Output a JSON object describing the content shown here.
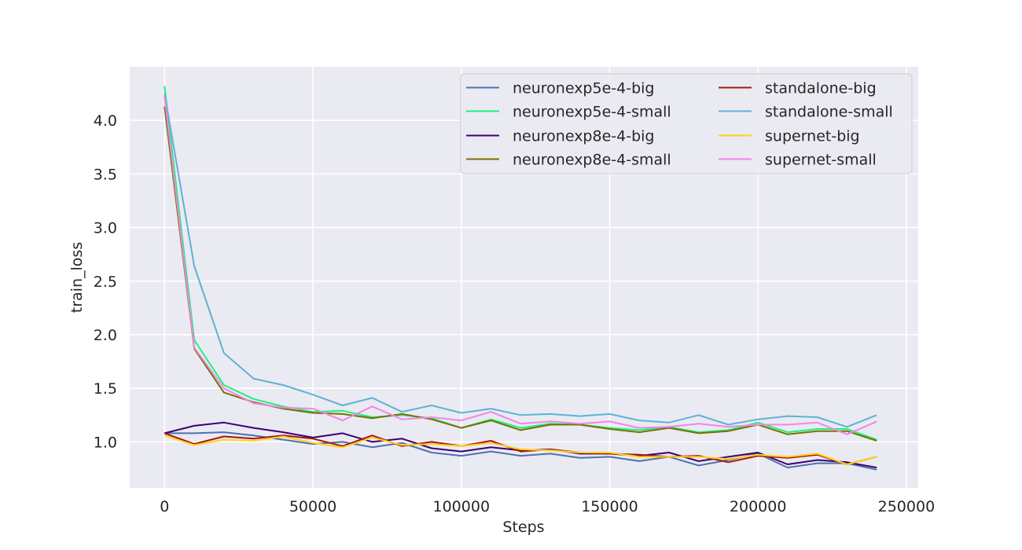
{
  "chart_data": {
    "type": "line",
    "title": "",
    "xlabel": "Steps",
    "ylabel": "train_loss",
    "xlim": [
      -11750,
      254000
    ],
    "ylim": [
      0.57,
      4.5
    ],
    "xticks": [
      0,
      50000,
      100000,
      150000,
      200000,
      250000
    ],
    "xtick_labels": [
      "0",
      "50000",
      "100000",
      "150000",
      "200000",
      "250000"
    ],
    "yticks": [
      1.0,
      1.5,
      2.0,
      2.5,
      3.0,
      3.5,
      4.0
    ],
    "ytick_labels": [
      "1.0",
      "1.5",
      "2.0",
      "2.5",
      "3.0",
      "3.5",
      "4.0"
    ],
    "grid": true,
    "legend": {
      "position": "top-right",
      "columns": 2
    },
    "x": [
      0,
      10000,
      20000,
      30000,
      40000,
      50000,
      60000,
      70000,
      80000,
      90000,
      100000,
      110000,
      120000,
      130000,
      140000,
      150000,
      160000,
      170000,
      180000,
      190000,
      200000,
      210000,
      220000,
      230000,
      240000
    ],
    "series": [
      {
        "name": "neuronexp5e-4-big",
        "color": "#4c72b0",
        "values": [
          1.08,
          1.08,
          1.09,
          1.06,
          1.02,
          0.98,
          1.0,
          0.95,
          0.99,
          0.9,
          0.87,
          0.91,
          0.87,
          0.89,
          0.85,
          0.86,
          0.82,
          0.86,
          0.78,
          0.83,
          0.89,
          0.76,
          0.8,
          0.8,
          0.74
        ]
      },
      {
        "name": "neuronexp5e-4-small",
        "color": "#1cf27d",
        "values": [
          4.32,
          1.95,
          1.53,
          1.4,
          1.33,
          1.28,
          1.29,
          1.23,
          1.25,
          1.22,
          1.13,
          1.21,
          1.13,
          1.17,
          1.16,
          1.13,
          1.11,
          1.14,
          1.09,
          1.11,
          1.18,
          1.09,
          1.12,
          1.12,
          1.02
        ]
      },
      {
        "name": "neuronexp8e-4-big",
        "color": "#3a0075",
        "values": [
          1.08,
          1.15,
          1.18,
          1.13,
          1.09,
          1.04,
          1.08,
          1.0,
          1.03,
          0.94,
          0.91,
          0.95,
          0.92,
          0.93,
          0.89,
          0.89,
          0.87,
          0.9,
          0.82,
          0.86,
          0.9,
          0.79,
          0.83,
          0.81,
          0.76
        ]
      },
      {
        "name": "neuronexp8e-4-small",
        "color": "#7a7000",
        "values": [
          4.13,
          1.87,
          1.46,
          1.37,
          1.31,
          1.27,
          1.26,
          1.22,
          1.26,
          1.21,
          1.13,
          1.2,
          1.11,
          1.16,
          1.16,
          1.12,
          1.09,
          1.13,
          1.08,
          1.1,
          1.16,
          1.07,
          1.1,
          1.1,
          1.01
        ]
      },
      {
        "name": "standalone-big",
        "color": "#a9150c",
        "values": [
          1.08,
          0.98,
          1.05,
          1.03,
          1.06,
          1.03,
          0.96,
          1.06,
          0.96,
          1.0,
          0.96,
          1.01,
          0.91,
          0.93,
          0.9,
          0.89,
          0.88,
          0.86,
          0.87,
          0.81,
          0.87,
          0.85,
          0.88,
          0.79,
          0.86
        ]
      },
      {
        "name": "standalone-small",
        "color": "#61b1d4",
        "values": [
          4.25,
          2.64,
          1.83,
          1.59,
          1.53,
          1.44,
          1.34,
          1.41,
          1.28,
          1.34,
          1.27,
          1.31,
          1.25,
          1.26,
          1.24,
          1.26,
          1.2,
          1.18,
          1.25,
          1.16,
          1.21,
          1.24,
          1.23,
          1.14,
          1.25
        ]
      },
      {
        "name": "supernet-big",
        "color": "#ffd21a",
        "values": [
          1.06,
          0.97,
          1.02,
          1.01,
          1.05,
          0.99,
          0.95,
          1.04,
          0.97,
          0.98,
          0.96,
          0.99,
          0.93,
          0.92,
          0.9,
          0.9,
          0.86,
          0.86,
          0.86,
          0.84,
          0.88,
          0.86,
          0.89,
          0.79,
          0.86
        ]
      },
      {
        "name": "supernet-small",
        "color": "#f086e8",
        "values": [
          4.22,
          1.88,
          1.5,
          1.36,
          1.32,
          1.31,
          1.2,
          1.33,
          1.21,
          1.23,
          1.2,
          1.28,
          1.17,
          1.19,
          1.17,
          1.19,
          1.13,
          1.14,
          1.17,
          1.14,
          1.16,
          1.16,
          1.18,
          1.07,
          1.19
        ]
      }
    ]
  }
}
